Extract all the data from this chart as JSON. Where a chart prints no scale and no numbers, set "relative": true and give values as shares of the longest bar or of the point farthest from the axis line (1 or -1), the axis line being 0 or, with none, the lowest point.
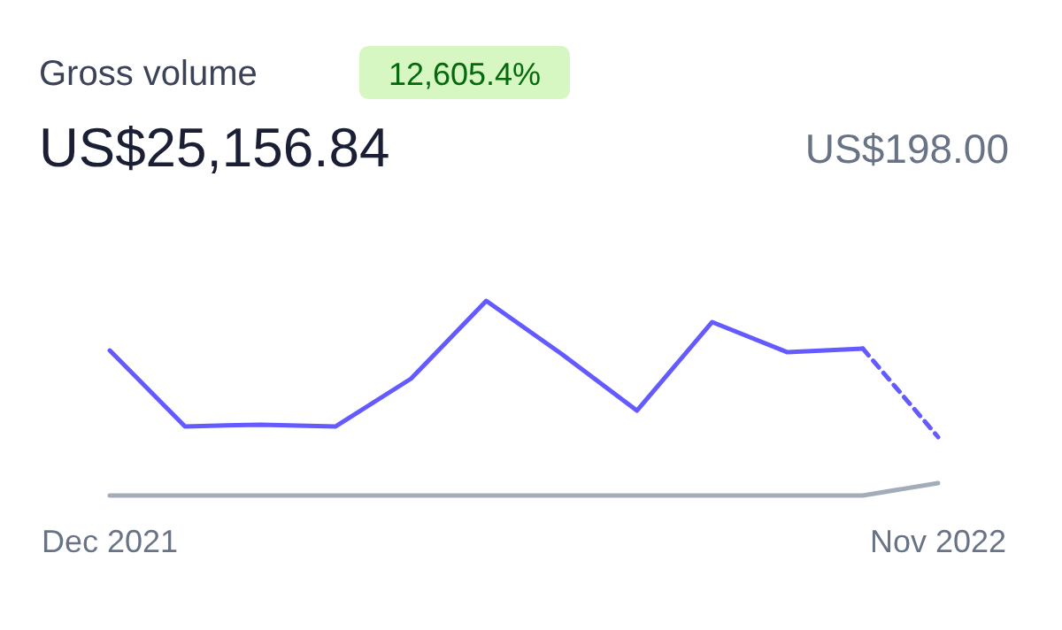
{
  "chart_data": {
    "type": "line",
    "title": "Gross volume",
    "subtitle": "US$25,156.84",
    "annotations": [
      "12,605.4%",
      "US$198.00"
    ],
    "categories": [
      "Dec 2021",
      null,
      null,
      null,
      null,
      null,
      null,
      null,
      null,
      null,
      null,
      "Nov 2022"
    ],
    "relative": true,
    "tick_labels": "x",
    "series": [
      {
        "color": "#a3acb9",
        "values": [
          0,
          0,
          0,
          0,
          0,
          0,
          0,
          0,
          0,
          0,
          0,
          0.064
        ]
      },
      {
        "color": "#635bff",
        "values": [
          0.745,
          0.355,
          0.364,
          0.355,
          0.6,
          1,
          0.727,
          0.436,
          0.891,
          0.736,
          0.755,
          null
        ]
      },
      {
        "color": "#635bff",
        "line_style": "dashed",
        "values": [
          null,
          null,
          null,
          null,
          null,
          null,
          null,
          null,
          null,
          null,
          0.755,
          0.3
        ]
      }
    ]
  }
}
